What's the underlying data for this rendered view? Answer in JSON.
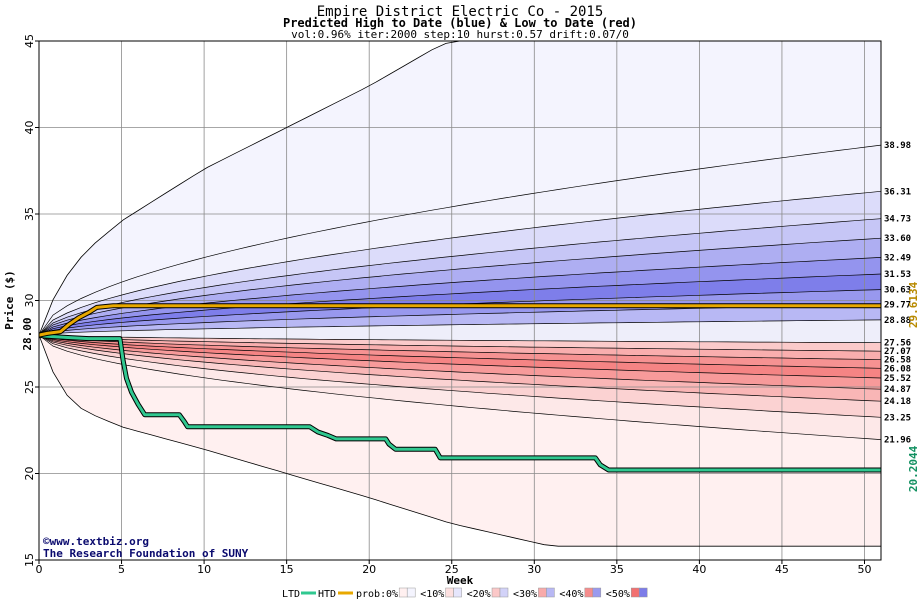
{
  "chart_data": {
    "type": "area",
    "title": "Empire District Electric Co - 2015",
    "subtitle": "Predicted High to Date (blue) &  Low to Date (red)",
    "params": "vol:0.96% iter:2000 step:10 hurst:0.57 drift:0.07/0",
    "xlabel": "Week",
    "ylabel": "Price ($)",
    "xlim": [
      0,
      51
    ],
    "ylim": [
      15,
      45
    ],
    "x_ticks": [
      0,
      5,
      10,
      15,
      20,
      25,
      30,
      35,
      40,
      45,
      50
    ],
    "y_ticks": [
      15,
      20,
      25,
      30,
      35,
      40,
      45
    ],
    "start_price_label": "28.00",
    "start_price": 28.0,
    "grid": true,
    "high_bands": [
      {
        "end": 38.98,
        "label": "38.98",
        "color": "#f2f2fd"
      },
      {
        "end": 36.31,
        "label": "36.31",
        "color": "#dcdcfa"
      },
      {
        "end": 34.73,
        "label": "34.73",
        "color": "#c6c6f6"
      },
      {
        "end": 33.6,
        "label": "33.60",
        "color": "#aeaef2"
      },
      {
        "end": 32.49,
        "label": "32.49",
        "color": "#9494ee"
      },
      {
        "end": 31.53,
        "label": "31.53",
        "color": "#7e7eea"
      },
      {
        "end": 30.63,
        "label": "30.63",
        "color": "#9898ee"
      },
      {
        "end": 29.77,
        "label": "29.77",
        "color": "#b8b8f4"
      },
      {
        "end": 28.88,
        "label": "28.88",
        "color": "#dcdcfa"
      }
    ],
    "low_bands": [
      {
        "end": 27.56,
        "label": "27.56",
        "color": "#fde4e4"
      },
      {
        "end": 27.07,
        "label": "27.07",
        "color": "#fbcaca"
      },
      {
        "end": 26.58,
        "label": "26.58",
        "color": "#f9aeae"
      },
      {
        "end": 26.08,
        "label": "26.08",
        "color": "#f69292"
      },
      {
        "end": 25.52,
        "label": "25.52",
        "color": "#f58484"
      },
      {
        "end": 24.87,
        "label": "24.87",
        "color": "#f79a9a"
      },
      {
        "end": 24.18,
        "label": "24.18",
        "color": "#f9b6b6"
      },
      {
        "end": 23.25,
        "label": "23.25",
        "color": "#fbd2d2"
      },
      {
        "end": 21.96,
        "label": "21.96",
        "color": "#fde8e8"
      }
    ],
    "outer_upper_at_week": [
      [
        0,
        28.0
      ],
      [
        1,
        30.4
      ],
      [
        2,
        31.9
      ],
      [
        3,
        33.0
      ],
      [
        5,
        34.6
      ],
      [
        10,
        37.6
      ],
      [
        15,
        40.0
      ],
      [
        20,
        42.4
      ],
      [
        24,
        44.6
      ],
      [
        25,
        45.0
      ]
    ],
    "outer_lower_at_week": [
      [
        0,
        28.0
      ],
      [
        1,
        25.5
      ],
      [
        2,
        24.1
      ],
      [
        3,
        23.5
      ],
      [
        5,
        22.7
      ],
      [
        10,
        21.4
      ],
      [
        15,
        20.0
      ],
      [
        20,
        18.6
      ],
      [
        25,
        17.1
      ],
      [
        31,
        15.8
      ],
      [
        51,
        15.8
      ]
    ],
    "series": [
      {
        "name": "LTD",
        "color": "#30c890",
        "points": [
          [
            0,
            28.0
          ],
          [
            0.3,
            27.95
          ],
          [
            1,
            27.9
          ],
          [
            2,
            27.85
          ],
          [
            3,
            27.8
          ],
          [
            4.9,
            27.8
          ],
          [
            5.1,
            26.5
          ],
          [
            5.3,
            25.5
          ],
          [
            5.6,
            24.7
          ],
          [
            6,
            24.0
          ],
          [
            6.4,
            23.4
          ],
          [
            8.5,
            23.4
          ],
          [
            8.8,
            23.0
          ],
          [
            9.0,
            22.7
          ],
          [
            16.4,
            22.7
          ],
          [
            16.9,
            22.4
          ],
          [
            17.5,
            22.2
          ],
          [
            18.0,
            22.0
          ],
          [
            21.0,
            22.0
          ],
          [
            21.2,
            21.7
          ],
          [
            21.6,
            21.4
          ],
          [
            24.0,
            21.4
          ],
          [
            24.3,
            20.9
          ],
          [
            33.7,
            20.9
          ],
          [
            34.0,
            20.5
          ],
          [
            34.5,
            20.2
          ],
          [
            51,
            20.2
          ]
        ],
        "final_label": "20.2044"
      },
      {
        "name": "HTD",
        "color": "#e8a800",
        "points": [
          [
            0,
            28.0
          ],
          [
            0.5,
            28.1
          ],
          [
            1.3,
            28.2
          ],
          [
            1.8,
            28.6
          ],
          [
            2.4,
            29.0
          ],
          [
            3.0,
            29.3
          ],
          [
            3.5,
            29.6
          ],
          [
            4.5,
            29.7
          ],
          [
            51,
            29.7
          ]
        ],
        "final_label": "29.6134"
      }
    ],
    "legend": {
      "placement": "bottom",
      "series_items": [
        {
          "label": "LTD",
          "color": "#30c890"
        },
        {
          "label": "HTD",
          "color": "#e8a800"
        }
      ],
      "prob_label": "prob:",
      "prob_items": [
        {
          "label": "0%",
          "low": "#fff0f0",
          "high": "#f4f4fe"
        },
        {
          "label": "<10%",
          "low": "#fde0e0",
          "high": "#e6e6fc"
        },
        {
          "label": "<20%",
          "low": "#fbc8c8",
          "high": "#d2d2f8"
        },
        {
          "label": "<30%",
          "low": "#f8aaaa",
          "high": "#b8b8f4"
        },
        {
          "label": "<40%",
          "low": "#f58c8c",
          "high": "#9a9aee"
        },
        {
          "label": "<50%",
          "low": "#f27070",
          "high": "#7c7ce8"
        }
      ]
    },
    "credits": [
      "©www.textbiz.org",
      "The Research Foundation of SUNY"
    ]
  }
}
